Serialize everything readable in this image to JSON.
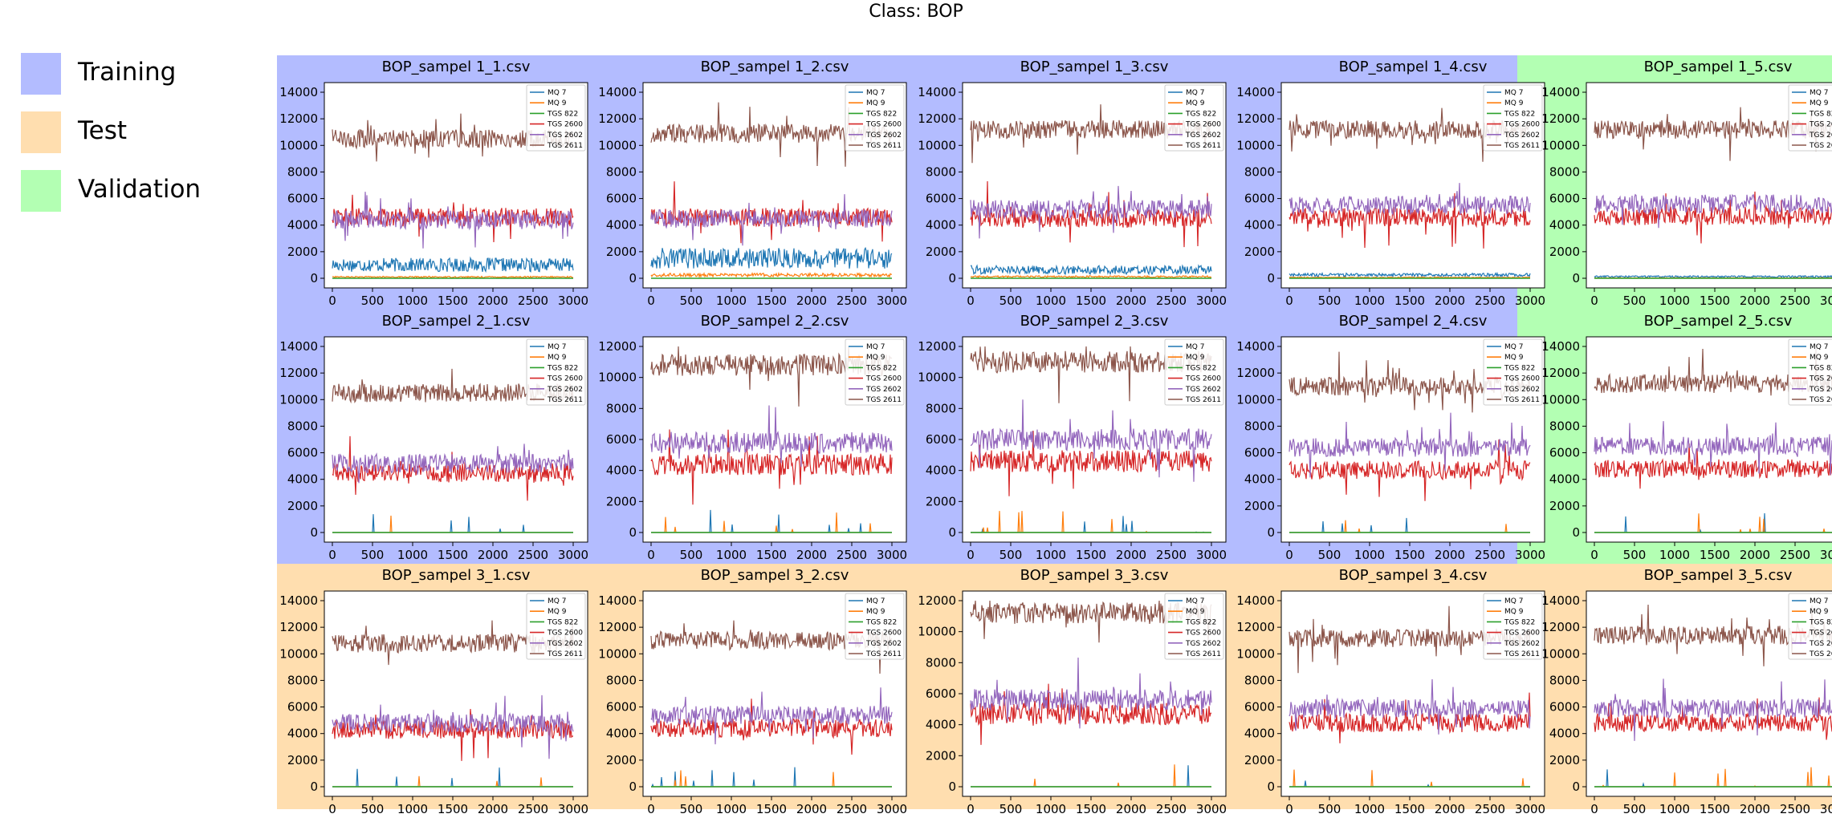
{
  "figure": {
    "suptitle": "Class: BOP"
  },
  "legend": [
    {
      "label": "Training",
      "color": "#b3bcff"
    },
    {
      "label": "Test",
      "color": "#ffdeaf"
    },
    {
      "label": "Validation",
      "color": "#b3ffb3"
    }
  ],
  "chart_data": {
    "type": "line",
    "note_series_colors": {
      "MQ 7": "#1f77b4",
      "MQ 9": "#ff7f0e",
      "TGS 822": "#2ca02c",
      "TGS 2600": "#d62728",
      "TGS 2602": "#9467bd",
      "TGS 2611": "#8c564b"
    },
    "series_names": [
      "MQ 7",
      "MQ 9",
      "TGS 822",
      "TGS 2600",
      "TGS 2602",
      "TGS 2611"
    ],
    "xlim": [
      0,
      3000
    ],
    "x_ticks": [
      0,
      500,
      1000,
      1500,
      2000,
      2500,
      3000
    ],
    "panels": [
      {
        "title": "BOP_sampel 1_1.csv",
        "split": "Training",
        "ylim": [
          0,
          14000
        ],
        "y_ticks": [
          0,
          2000,
          4000,
          6000,
          8000,
          10000,
          12000,
          14000
        ],
        "levels": {
          "MQ 7": 800,
          "MQ 9": 80,
          "TGS 822": 0,
          "TGS 2600": 4600,
          "TGS 2602": 4400,
          "TGS 2611": 10500
        }
      },
      {
        "title": "BOP_sampel 1_2.csv",
        "split": "Training",
        "ylim": [
          0,
          14000
        ],
        "y_ticks": [
          0,
          2000,
          4000,
          6000,
          8000,
          10000,
          12000,
          14000
        ],
        "levels": {
          "MQ 7": 1200,
          "MQ 9": 200,
          "TGS 822": 0,
          "TGS 2600": 4600,
          "TGS 2602": 4500,
          "TGS 2611": 10900
        }
      },
      {
        "title": "BOP_sampel 1_3.csv",
        "split": "Training",
        "ylim": [
          0,
          14000
        ],
        "y_ticks": [
          0,
          2000,
          4000,
          6000,
          8000,
          10000,
          12000,
          14000
        ],
        "levels": {
          "MQ 7": 500,
          "MQ 9": 100,
          "TGS 822": 0,
          "TGS 2600": 4500,
          "TGS 2602": 5200,
          "TGS 2611": 11200
        }
      },
      {
        "title": "BOP_sampel 1_4.csv",
        "split": "Training",
        "ylim": [
          0,
          14000
        ],
        "y_ticks": [
          0,
          2000,
          4000,
          6000,
          8000,
          10000,
          12000,
          14000
        ],
        "levels": {
          "MQ 7": 200,
          "MQ 9": 50,
          "TGS 822": 0,
          "TGS 2600": 4600,
          "TGS 2602": 5500,
          "TGS 2611": 11200
        }
      },
      {
        "title": "BOP_sampel 1_5.csv",
        "split": "Validation",
        "ylim": [
          0,
          14000
        ],
        "y_ticks": [
          0,
          2000,
          4000,
          6000,
          8000,
          10000,
          12000,
          14000
        ],
        "levels": {
          "MQ 7": 100,
          "MQ 9": 20,
          "TGS 822": 0,
          "TGS 2600": 4700,
          "TGS 2602": 5600,
          "TGS 2611": 11200
        }
      },
      {
        "title": "BOP_sampel 2_1.csv",
        "split": "Training",
        "ylim": [
          0,
          14000
        ],
        "y_ticks": [
          0,
          2000,
          4000,
          6000,
          8000,
          10000,
          12000,
          14000
        ],
        "levels": {
          "MQ 7": 0,
          "MQ 9": 0,
          "TGS 822": 0,
          "TGS 2600": 4500,
          "TGS 2602": 5200,
          "TGS 2611": 10500
        }
      },
      {
        "title": "BOP_sampel 2_2.csv",
        "split": "Training",
        "ylim": [
          0,
          12000
        ],
        "y_ticks": [
          0,
          2000,
          4000,
          6000,
          8000,
          10000,
          12000
        ],
        "levels": {
          "MQ 7": 0,
          "MQ 9": 0,
          "TGS 822": 0,
          "TGS 2600": 4400,
          "TGS 2602": 5800,
          "TGS 2611": 10800
        }
      },
      {
        "title": "BOP_sampel 2_3.csv",
        "split": "Training",
        "ylim": [
          0,
          12000
        ],
        "y_ticks": [
          0,
          2000,
          4000,
          6000,
          8000,
          10000,
          12000
        ],
        "levels": {
          "MQ 7": 0,
          "MQ 9": 0,
          "TGS 822": 0,
          "TGS 2600": 4600,
          "TGS 2602": 6000,
          "TGS 2611": 11000
        }
      },
      {
        "title": "BOP_sampel 2_4.csv",
        "split": "Training",
        "ylim": [
          0,
          14000
        ],
        "y_ticks": [
          0,
          2000,
          4000,
          6000,
          8000,
          10000,
          12000,
          14000
        ],
        "levels": {
          "MQ 7": 0,
          "MQ 9": 0,
          "TGS 822": 0,
          "TGS 2600": 4700,
          "TGS 2602": 6400,
          "TGS 2611": 11000
        }
      },
      {
        "title": "BOP_sampel 2_5.csv",
        "split": "Validation",
        "ylim": [
          0,
          14000
        ],
        "y_ticks": [
          0,
          2000,
          4000,
          6000,
          8000,
          10000,
          12000,
          14000
        ],
        "levels": {
          "MQ 7": 0,
          "MQ 9": 0,
          "TGS 822": 0,
          "TGS 2600": 4800,
          "TGS 2602": 6500,
          "TGS 2611": 11200
        }
      },
      {
        "title": "BOP_sampel 3_1.csv",
        "split": "Test",
        "ylim": [
          0,
          14000
        ],
        "y_ticks": [
          0,
          2000,
          4000,
          6000,
          8000,
          10000,
          12000,
          14000
        ],
        "levels": {
          "MQ 7": 0,
          "MQ 9": 0,
          "TGS 822": 0,
          "TGS 2600": 4300,
          "TGS 2602": 4800,
          "TGS 2611": 10800
        }
      },
      {
        "title": "BOP_sampel 3_2.csv",
        "split": "Test",
        "ylim": [
          0,
          14000
        ],
        "y_ticks": [
          0,
          2000,
          4000,
          6000,
          8000,
          10000,
          12000,
          14000
        ],
        "levels": {
          "MQ 7": 0,
          "MQ 9": 0,
          "TGS 822": 0,
          "TGS 2600": 4400,
          "TGS 2602": 5400,
          "TGS 2611": 11000
        }
      },
      {
        "title": "BOP_sampel 3_3.csv",
        "split": "Test",
        "ylim": [
          0,
          12000
        ],
        "y_ticks": [
          0,
          2000,
          4000,
          6000,
          8000,
          10000,
          12000
        ],
        "levels": {
          "MQ 7": 0,
          "MQ 9": 0,
          "TGS 822": 0,
          "TGS 2600": 4700,
          "TGS 2602": 5600,
          "TGS 2611": 11200
        }
      },
      {
        "title": "BOP_sampel 3_4.csv",
        "split": "Test",
        "ylim": [
          0,
          14000
        ],
        "y_ticks": [
          0,
          2000,
          4000,
          6000,
          8000,
          10000,
          12000,
          14000
        ],
        "levels": {
          "MQ 7": 0,
          "MQ 9": 0,
          "TGS 822": 0,
          "TGS 2600": 4800,
          "TGS 2602": 5900,
          "TGS 2611": 11200
        }
      },
      {
        "title": "BOP_sampel 3_5.csv",
        "split": "Test",
        "ylim": [
          0,
          14000
        ],
        "y_ticks": [
          0,
          2000,
          4000,
          6000,
          8000,
          10000,
          12000,
          14000
        ],
        "levels": {
          "MQ 7": 0,
          "MQ 9": 0,
          "TGS 822": 0,
          "TGS 2600": 4800,
          "TGS 2602": 5900,
          "TGS 2611": 11400
        }
      }
    ]
  }
}
